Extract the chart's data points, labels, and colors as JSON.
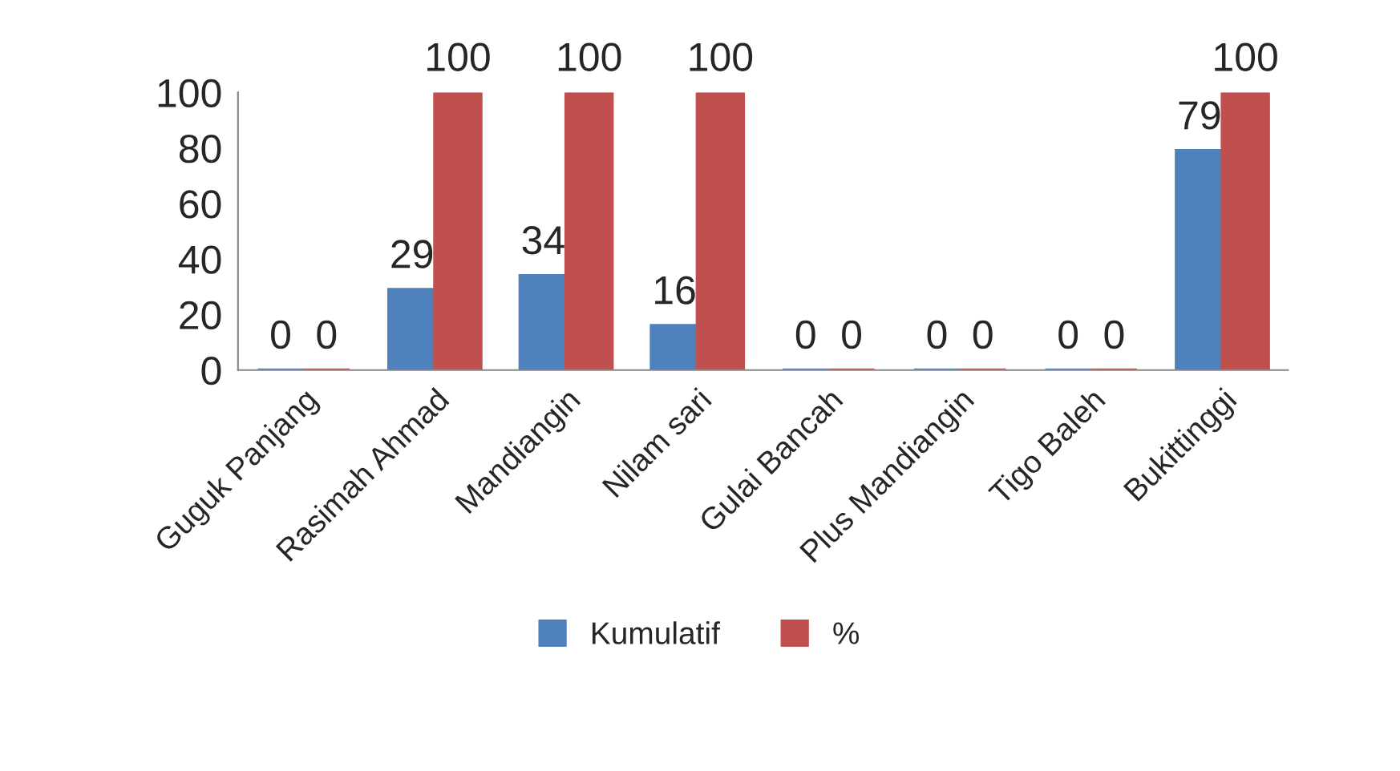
{
  "chart_data": {
    "type": "bar",
    "categories": [
      "Guguk Panjang",
      "Rasimah Ahmad",
      "Mandiangin",
      "Nilam sari",
      "Gulai Bancah",
      "Plus Mandiangin",
      "Tigo Baleh",
      "Bukittinggi"
    ],
    "series": [
      {
        "name": "Kumulatif",
        "color": "#4f81bd",
        "values": [
          0,
          29,
          34,
          16,
          0,
          0,
          0,
          79
        ]
      },
      {
        "name": "%",
        "color": "#c0504d",
        "values": [
          0,
          100,
          100,
          100,
          0,
          0,
          0,
          100
        ]
      }
    ],
    "ylim": [
      0,
      100
    ],
    "yticks": [
      0,
      20,
      40,
      60,
      80,
      100
    ],
    "data_labels": true,
    "grid": false,
    "legend": "bottom"
  }
}
